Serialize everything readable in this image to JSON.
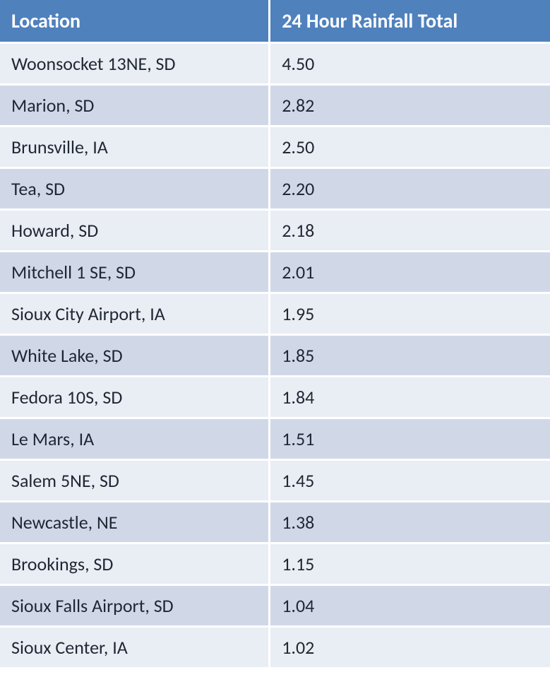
{
  "table": {
    "type": "table",
    "header_bg_color": "#4f81bd",
    "header_text_color": "#ffffff",
    "row_odd_bg_color": "#e9edf4",
    "row_even_bg_color": "#d0d8e8",
    "cell_text_color": "#1f2733",
    "border_color": "#ffffff",
    "header_fontsize": 28,
    "cell_fontsize": 26,
    "columns": [
      {
        "label": "Location",
        "width": "49%",
        "align": "left"
      },
      {
        "label": "24 Hour Rainfall Total",
        "width": "51%",
        "align": "left"
      }
    ],
    "rows": [
      [
        "Woonsocket 13NE, SD",
        "4.50"
      ],
      [
        "Marion, SD",
        "2.82"
      ],
      [
        "Brunsville, IA",
        "2.50"
      ],
      [
        "Tea, SD",
        "2.20"
      ],
      [
        "Howard, SD",
        "2.18"
      ],
      [
        "Mitchell 1 SE, SD",
        "2.01"
      ],
      [
        "Sioux City Airport, IA",
        "1.95"
      ],
      [
        "White Lake, SD",
        "1.85"
      ],
      [
        "Fedora 10S, SD",
        "1.84"
      ],
      [
        "Le Mars, IA",
        "1.51"
      ],
      [
        "Salem 5NE, SD",
        "1.45"
      ],
      [
        "Newcastle, NE",
        "1.38"
      ],
      [
        "Brookings, SD",
        "1.15"
      ],
      [
        "Sioux Falls Airport, SD",
        "1.04"
      ],
      [
        "Sioux Center, IA",
        "1.02"
      ]
    ]
  }
}
